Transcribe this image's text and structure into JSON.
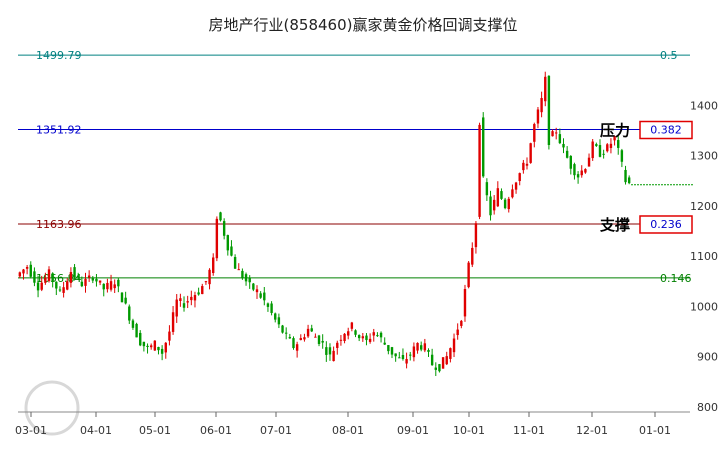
{
  "chart_data": {
    "type": "candlestick",
    "title": "房地产行业(858460)赢家黄金价格回调支撑位",
    "x_ticks": [
      "03-01",
      "04-01",
      "05-01",
      "06-01",
      "07-01",
      "08-01",
      "09-01",
      "10-01",
      "11-01",
      "12-01",
      "01-01"
    ],
    "y_ticks": [
      800,
      900,
      1000,
      1100,
      1200,
      1300,
      1400
    ],
    "ylim": [
      790,
      1520
    ],
    "levels": [
      {
        "name": "level-1499",
        "value": 1499.79,
        "label": "1499.79",
        "ratio": "0.5",
        "color": "#008080"
      },
      {
        "name": "level-1351",
        "value": 1351.92,
        "label": "1351.92",
        "ratio": "0.382",
        "color": "#0000cc"
      },
      {
        "name": "level-1163",
        "value": 1163.96,
        "label": "1163.96",
        "ratio": "0.236",
        "color": "#8b0000"
      },
      {
        "name": "level-1056",
        "value": 1056.84,
        "label": "1056.84",
        "ratio": "0.146",
        "color": "#008000"
      }
    ],
    "pressure_label": "压力",
    "support_label": "支撑",
    "pressure_ratio": "0.382",
    "support_ratio": "0.236",
    "last_price": 1242,
    "colors": {
      "up": "#e00000",
      "down": "#009900"
    },
    "path": [
      [
        0,
        1060
      ],
      [
        3,
        1080
      ],
      [
        6,
        1040
      ],
      [
        9,
        1065
      ],
      [
        12,
        1025
      ],
      [
        15,
        1070
      ],
      [
        18,
        1045
      ],
      [
        21,
        1060
      ],
      [
        24,
        1035
      ],
      [
        27,
        1050
      ],
      [
        30,
        1000
      ],
      [
        32,
        960
      ],
      [
        34,
        930
      ],
      [
        36,
        915
      ],
      [
        38,
        925
      ],
      [
        40,
        908
      ],
      [
        42,
        950
      ],
      [
        44,
        1010
      ],
      [
        46,
        1005
      ],
      [
        48,
        1020
      ],
      [
        50,
        1030
      ],
      [
        52,
        1050
      ],
      [
        54,
        1090
      ],
      [
        55,
        1180
      ],
      [
        56,
        1170
      ],
      [
        58,
        1120
      ],
      [
        60,
        1080
      ],
      [
        62,
        1060
      ],
      [
        64,
        1040
      ],
      [
        66,
        1030
      ],
      [
        68,
        1010
      ],
      [
        70,
        985
      ],
      [
        72,
        960
      ],
      [
        74,
        940
      ],
      [
        76,
        920
      ],
      [
        78,
        935
      ],
      [
        80,
        955
      ],
      [
        82,
        940
      ],
      [
        84,
        925
      ],
      [
        86,
        900
      ],
      [
        88,
        930
      ],
      [
        90,
        950
      ],
      [
        92,
        960
      ],
      [
        94,
        940
      ],
      [
        96,
        930
      ],
      [
        98,
        950
      ],
      [
        100,
        935
      ],
      [
        102,
        915
      ],
      [
        104,
        900
      ],
      [
        106,
        890
      ],
      [
        108,
        905
      ],
      [
        110,
        925
      ],
      [
        112,
        918
      ],
      [
        114,
        885
      ],
      [
        116,
        880
      ],
      [
        118,
        900
      ],
      [
        120,
        935
      ],
      [
        122,
        980
      ],
      [
        124,
        1080
      ],
      [
        125,
        1120
      ],
      [
        126,
        1170
      ],
      [
        127,
        1370
      ],
      [
        128,
        1250
      ],
      [
        130,
        1185
      ],
      [
        132,
        1230
      ],
      [
        134,
        1200
      ],
      [
        136,
        1240
      ],
      [
        138,
        1265
      ],
      [
        140,
        1290
      ],
      [
        142,
        1360
      ],
      [
        144,
        1410
      ],
      [
        145,
        1450
      ],
      [
        146,
        1330
      ],
      [
        148,
        1350
      ],
      [
        150,
        1310
      ],
      [
        152,
        1280
      ],
      [
        154,
        1260
      ],
      [
        156,
        1280
      ],
      [
        158,
        1320
      ],
      [
        160,
        1305
      ],
      [
        162,
        1315
      ],
      [
        164,
        1335
      ],
      [
        166,
        1280
      ],
      [
        167,
        1250
      ],
      [
        168,
        1244
      ],
      [
        170,
        1242
      ],
      [
        172,
        1242
      ],
      [
        174,
        1242
      ],
      [
        176,
        1242
      ],
      [
        178,
        1242
      ],
      [
        180,
        1242
      ]
    ]
  }
}
